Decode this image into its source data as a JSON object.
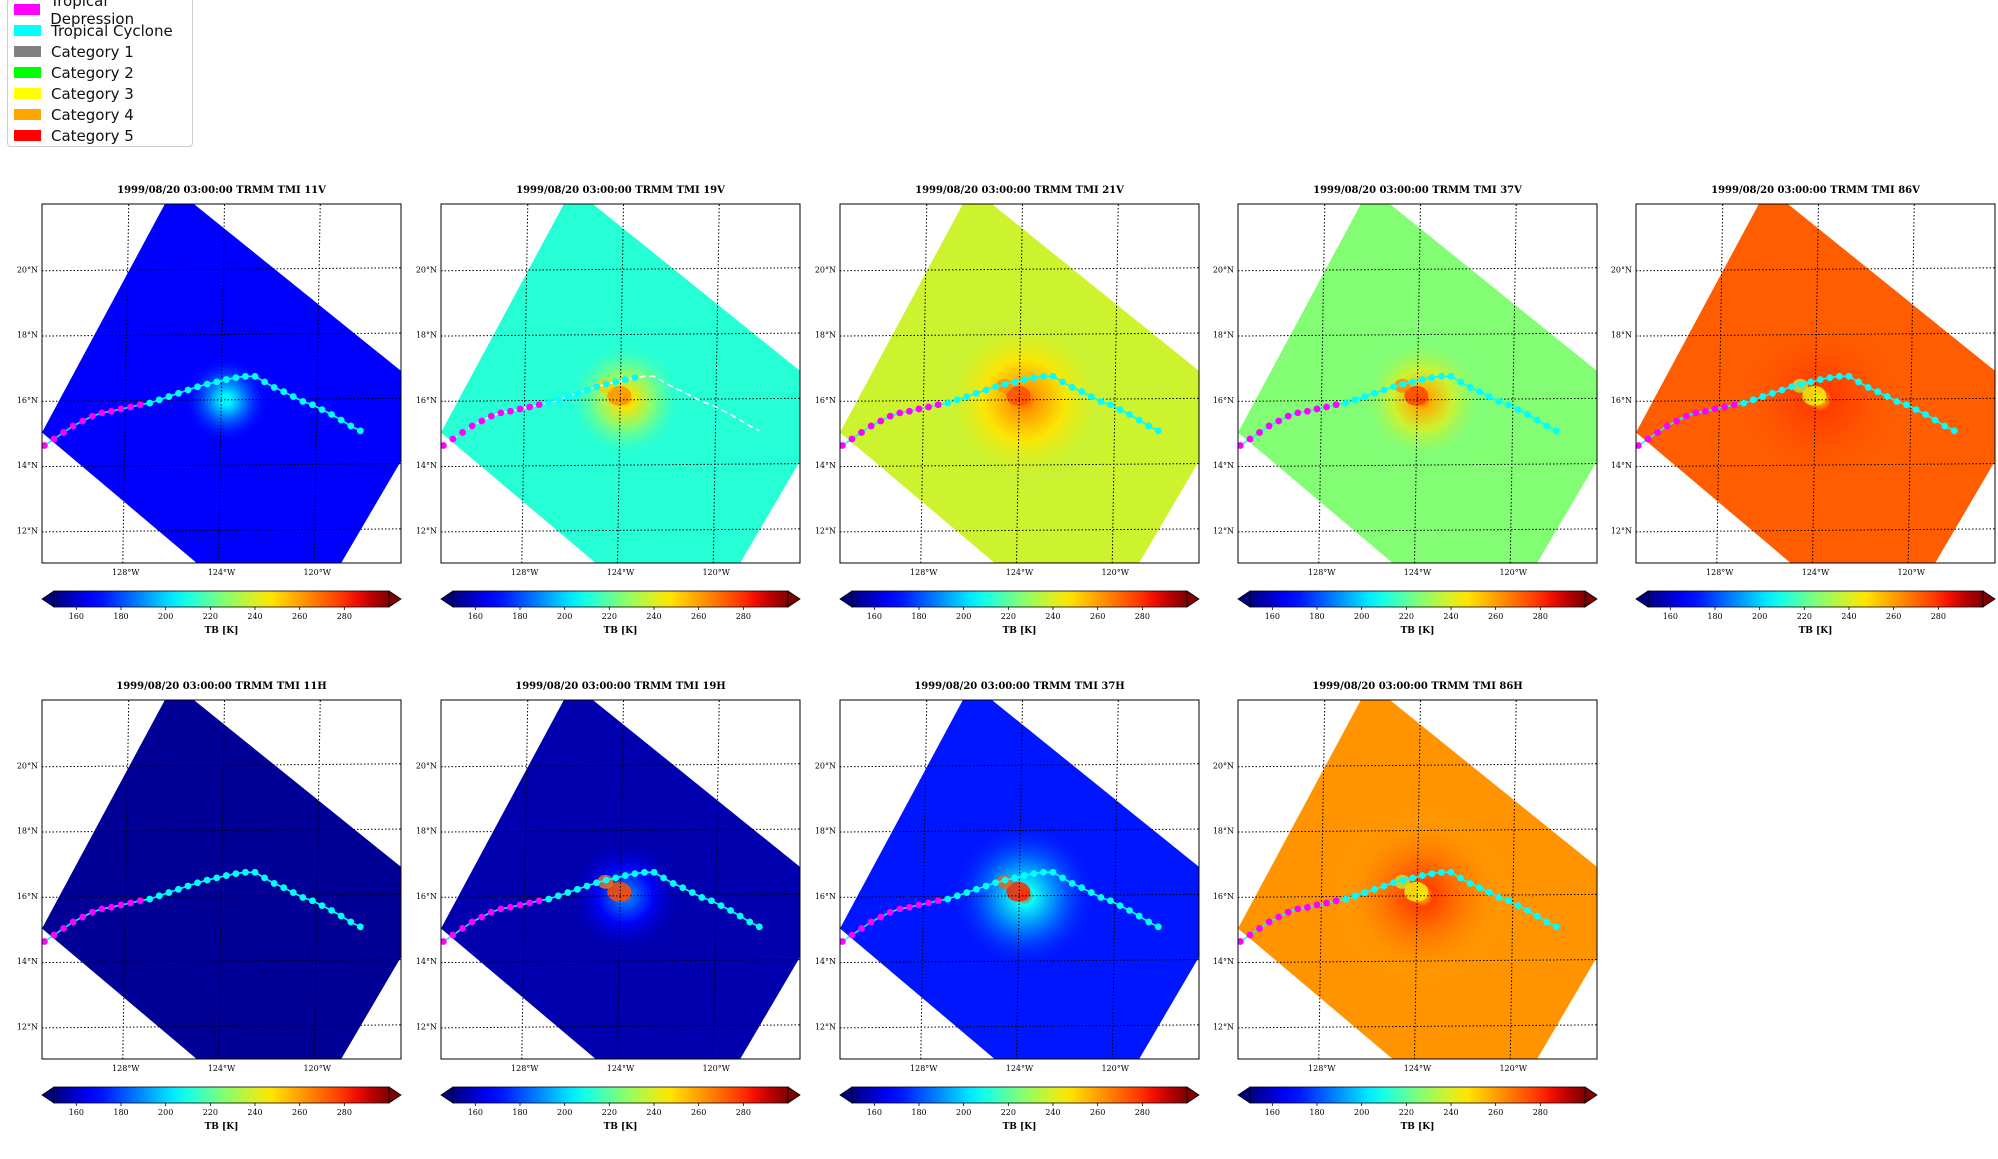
{
  "legend": {
    "items": [
      {
        "label": "Tropical Depression",
        "color": "#ff00ff"
      },
      {
        "label": "Tropical Cyclone",
        "color": "#00ffff"
      },
      {
        "label": "Category 1",
        "color": "#808080"
      },
      {
        "label": "Category 2",
        "color": "#00ff00"
      },
      {
        "label": "Category 3",
        "color": "#ffff00"
      },
      {
        "label": "Category 4",
        "color": "#ffa500"
      },
      {
        "label": "Category 5",
        "color": "#ff0000"
      }
    ]
  },
  "colorbar": {
    "ticks": [
      "160",
      "180",
      "200",
      "220",
      "240",
      "260",
      "280"
    ],
    "tick_values": [
      160,
      180,
      200,
      220,
      240,
      260,
      280
    ],
    "range": [
      150,
      300
    ],
    "label": "TB [K]",
    "colormap": "jet",
    "extend": "both"
  },
  "map": {
    "lon_range": [
      -131.5,
      -116.5
    ],
    "lat_range": [
      11,
      22
    ],
    "lon_ticks": [
      -128,
      -124,
      -120
    ],
    "lon_labels": [
      "128°W",
      "124°W",
      "120°W"
    ],
    "lat_ticks": [
      12,
      14,
      16,
      18,
      20
    ],
    "lat_labels": [
      "12°N",
      "14°N",
      "16°N",
      "18°N",
      "20°N"
    ],
    "grid": "dotted",
    "swath_corners": [
      [
        -131.5,
        15
      ],
      [
        -126.0,
        22.5
      ],
      [
        -115.0,
        16.0
      ],
      [
        -121.0,
        8.5
      ]
    ],
    "storm_center": [
      -123.8,
      16.0
    ]
  },
  "track": {
    "points": [
      [
        -131.4,
        14.6,
        "TD"
      ],
      [
        -131.0,
        14.8,
        "TD"
      ],
      [
        -130.6,
        15.0,
        "TD"
      ],
      [
        -130.2,
        15.2,
        "TD"
      ],
      [
        -129.8,
        15.35,
        "TD"
      ],
      [
        -129.4,
        15.5,
        "TD"
      ],
      [
        -129.0,
        15.6,
        "TD"
      ],
      [
        -128.6,
        15.65,
        "TD"
      ],
      [
        -128.2,
        15.72,
        "TD"
      ],
      [
        -127.8,
        15.78,
        "TD"
      ],
      [
        -127.4,
        15.85,
        "TD"
      ],
      [
        -127.0,
        15.9,
        "TC"
      ],
      [
        -126.6,
        16.0,
        "TC"
      ],
      [
        -126.2,
        16.1,
        "TC"
      ],
      [
        -125.8,
        16.2,
        "TC"
      ],
      [
        -125.4,
        16.3,
        "TC"
      ],
      [
        -125.0,
        16.4,
        "TC"
      ],
      [
        -124.6,
        16.48,
        "TC"
      ],
      [
        -124.2,
        16.55,
        "TC"
      ],
      [
        -123.8,
        16.62,
        "TC"
      ],
      [
        -123.4,
        16.68,
        "TC"
      ],
      [
        -123.0,
        16.72,
        "TC"
      ],
      [
        -122.6,
        16.72,
        "TC"
      ],
      [
        -122.2,
        16.55,
        "TC"
      ],
      [
        -121.8,
        16.38,
        "TC"
      ],
      [
        -121.4,
        16.25,
        "TC"
      ],
      [
        -121.0,
        16.1,
        "TC"
      ],
      [
        -120.6,
        15.95,
        "TC"
      ],
      [
        -120.2,
        15.85,
        "TC"
      ],
      [
        -119.8,
        15.7,
        "TC"
      ],
      [
        -119.4,
        15.55,
        "TC"
      ],
      [
        -119.0,
        15.38,
        "TC"
      ],
      [
        -118.6,
        15.2,
        "TC"
      ],
      [
        -118.2,
        15.05,
        "TC"
      ]
    ]
  },
  "chart_data": [
    {
      "type": "heatmap",
      "title": "1999/08/20 03:00:00  TRMM TMI 11V",
      "base_tb": 168,
      "core_tb": 205,
      "core_radius_deg": 1.8,
      "eye_tb": 0,
      "background_tb": 168,
      "track_style": "dots"
    },
    {
      "type": "heatmap",
      "title": "1999/08/20 03:00:00  TRMM TMI 19V",
      "base_tb": 208,
      "core_tb": 248,
      "core_radius_deg": 2.6,
      "eye_tb": 262,
      "background_tb": 212,
      "track_style": "dashed-dots"
    },
    {
      "type": "heatmap",
      "title": "1999/08/20 03:00:00  TRMM TMI 21V",
      "base_tb": 232,
      "core_tb": 262,
      "core_radius_deg": 3.8,
      "eye_tb": 274,
      "background_tb": 238,
      "track_style": "dots"
    },
    {
      "type": "heatmap",
      "title": "1999/08/20 03:00:00  TRMM TMI 37V",
      "base_tb": 220,
      "core_tb": 258,
      "core_radius_deg": 2.8,
      "eye_tb": 276,
      "background_tb": 226,
      "track_style": "dots"
    },
    {
      "type": "heatmap",
      "title": "1999/08/20 03:00:00  TRMM TMI 86V",
      "base_tb": 271,
      "core_tb": 278,
      "core_radius_deg": 4.0,
      "eye_tb": 244,
      "background_tb": 272,
      "track_style": "dots"
    },
    {
      "type": "heatmap",
      "title": "1999/08/20 03:00:00  TRMM TMI 11H",
      "base_tb": 153,
      "core_tb": 153,
      "core_radius_deg": 1.0,
      "eye_tb": 0,
      "background_tb": 153,
      "track_style": "dots"
    },
    {
      "type": "heatmap",
      "title": "1999/08/20 03:00:00  TRMM TMI 19H",
      "base_tb": 153,
      "core_tb": 185,
      "core_radius_deg": 2.6,
      "eye_tb": 275,
      "background_tb": 156,
      "track_style": "dots"
    },
    {
      "type": "heatmap",
      "title": "1999/08/20 03:00:00  TRMM TMI 37H",
      "base_tb": 168,
      "core_tb": 208,
      "core_radius_deg": 3.2,
      "eye_tb": 282,
      "background_tb": 172,
      "track_style": "dots"
    },
    {
      "type": "heatmap",
      "title": "1999/08/20 03:00:00  TRMM TMI 86H",
      "base_tb": 258,
      "core_tb": 277,
      "core_radius_deg": 3.8,
      "eye_tb": 244,
      "background_tb": 262,
      "track_style": "dots"
    }
  ]
}
